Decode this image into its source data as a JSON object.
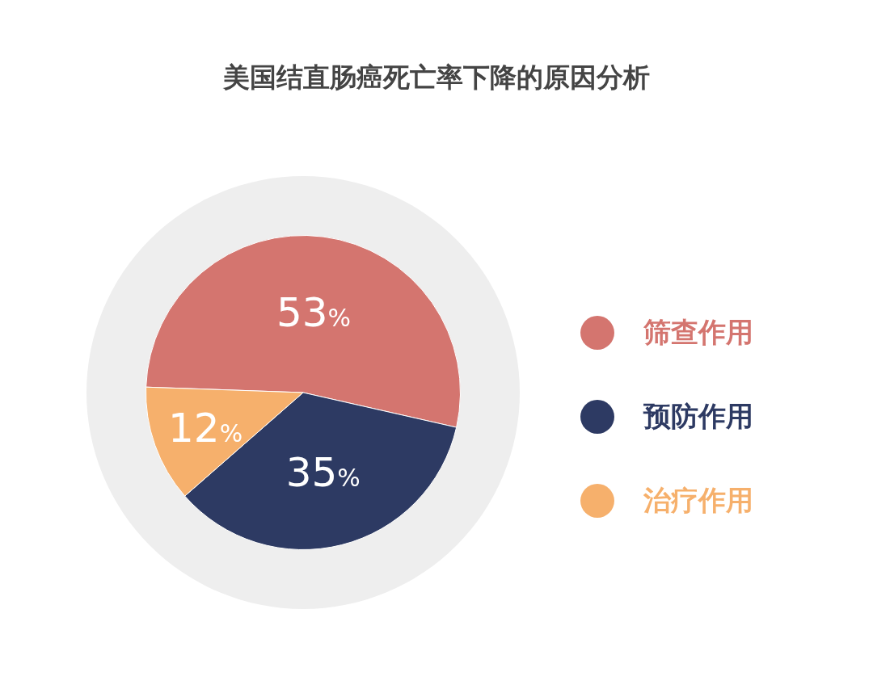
{
  "chart_data": {
    "type": "pie",
    "title": "美国结直肠癌死亡率下降的原因分析",
    "categories": [
      "筛查作用",
      "预防作用",
      "治疗作用"
    ],
    "values": [
      53,
      35,
      12
    ],
    "colors": [
      "#d4756f",
      "#2d3a63",
      "#f6b06c"
    ],
    "value_labels": [
      "53%",
      "35%",
      "12%"
    ],
    "legend": "right"
  }
}
